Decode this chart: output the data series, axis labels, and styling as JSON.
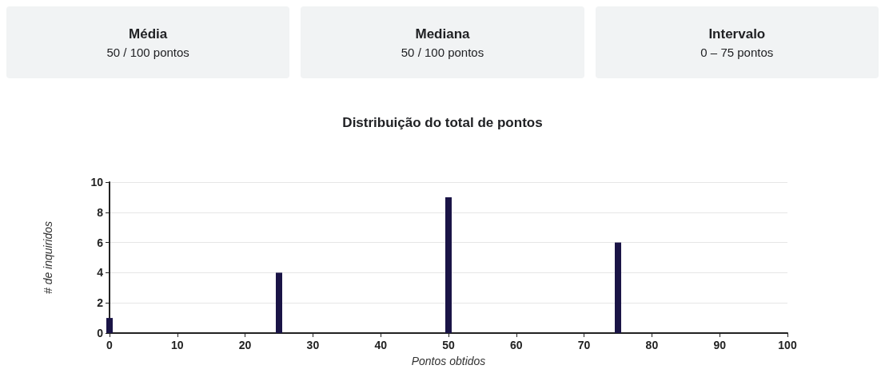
{
  "chart_data": [
    {
      "type": "other",
      "title": "Média",
      "annotations": [
        "50 / 100 pontos"
      ]
    },
    {
      "type": "other",
      "title": "Mediana",
      "annotations": [
        "50 / 100 pontos"
      ]
    },
    {
      "type": "other",
      "title": "Intervalo",
      "annotations": [
        "0 – 75 pontos"
      ]
    },
    {
      "type": "bar",
      "title": "Distribuição do total de pontos",
      "xlabel": "Pontos obtidos",
      "ylabel": "# de inquiridos",
      "x": [
        0,
        25,
        50,
        75
      ],
      "values": [
        1,
        4,
        9,
        6
      ],
      "color": "#1a1446",
      "xlim": [
        0,
        100
      ],
      "xticks": [
        0,
        10,
        20,
        30,
        40,
        50,
        60,
        70,
        80,
        90,
        100
      ],
      "ylim": [
        0,
        10
      ],
      "yticks": [
        0,
        2,
        4,
        6,
        8,
        10
      ],
      "grid": "y"
    }
  ]
}
